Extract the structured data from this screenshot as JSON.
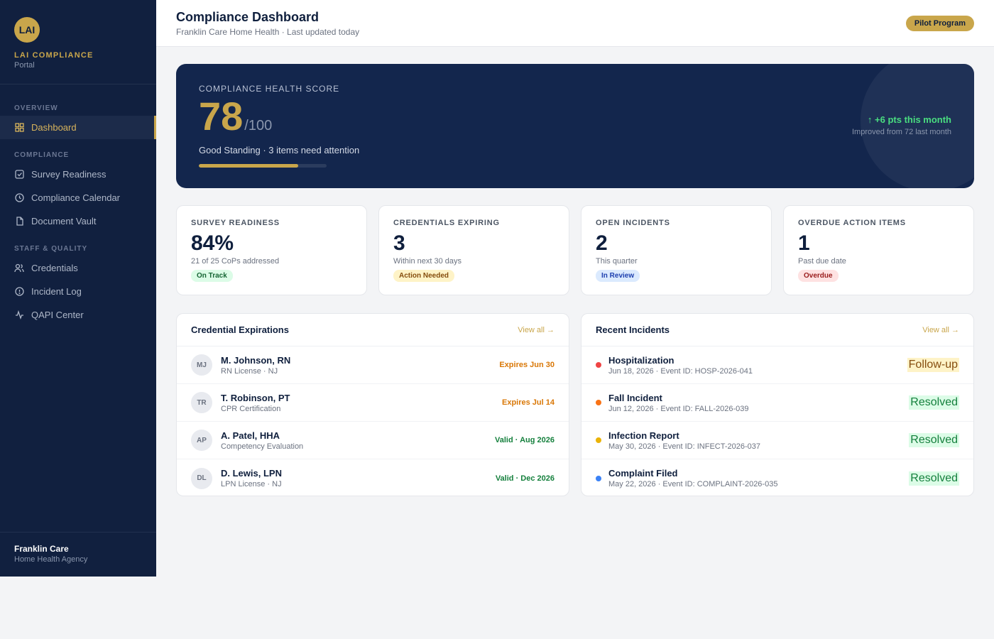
{
  "brand": {
    "logo": "LAI",
    "name": "LAI COMPLIANCE",
    "sub": "Portal"
  },
  "nav": {
    "overview_label": "OVERVIEW",
    "dashboard": "Dashboard",
    "compliance_label": "COMPLIANCE",
    "survey_readiness": "Survey Readiness",
    "compliance_calendar": "Compliance Calendar",
    "document_vault": "Document Vault",
    "staff_label": "STAFF & QUALITY",
    "credentials": "Credentials",
    "incident_log": "Incident Log",
    "qapi_center": "QAPI Center"
  },
  "footer": {
    "org_name": "Franklin Care",
    "org_type": "Home Health Agency"
  },
  "header": {
    "title": "Compliance Dashboard",
    "subtitle": "Franklin Care Home Health · Last updated today",
    "badge": "Pilot Program"
  },
  "hero": {
    "label": "COMPLIANCE HEALTH SCORE",
    "score": "78",
    "max": "/100",
    "status": "Good Standing · 3 items need attention",
    "progress_percent": 78,
    "trend": "↑ +6 pts this month",
    "trend_sub": "Improved from 72 last month"
  },
  "stats": [
    {
      "label": "SURVEY READINESS",
      "value": "84%",
      "sub": "21 of 25 CoPs addressed",
      "pill": "On Track"
    },
    {
      "label": "CREDENTIALS EXPIRING",
      "value": "3",
      "sub": "Within next 30 days",
      "pill": "Action Needed"
    },
    {
      "label": "OPEN INCIDENTS",
      "value": "2",
      "sub": "This quarter",
      "pill": "In Review"
    },
    {
      "label": "OVERDUE ACTION ITEMS",
      "value": "1",
      "sub": "Past due date",
      "pill": "Overdue"
    }
  ],
  "credentials": {
    "title": "Credential Expirations",
    "view_all": "View all →",
    "rows": [
      {
        "initials": "MJ",
        "name": "M. Johnson, RN",
        "detail": "RN License · NJ",
        "status": "Expires Jun 30"
      },
      {
        "initials": "TR",
        "name": "T. Robinson, PT",
        "detail": "CPR Certification",
        "status": "Expires Jul 14"
      },
      {
        "initials": "AP",
        "name": "A. Patel, HHA",
        "detail": "Competency Evaluation",
        "status": "Valid · Aug 2026"
      },
      {
        "initials": "DL",
        "name": "D. Lewis, LPN",
        "detail": "LPN License · NJ",
        "status": "Valid · Dec 2026"
      }
    ]
  },
  "incidents": {
    "title": "Recent Incidents",
    "view_all": "View all →",
    "rows": [
      {
        "type": "Hospitalization",
        "detail": "Jun 18, 2026 · Event ID: HOSP-2026-041",
        "status": "Follow-up",
        "dot_color": "#ef4444"
      },
      {
        "type": "Fall Incident",
        "detail": "Jun 12, 2026 · Event ID: FALL-2026-039",
        "status": "Resolved",
        "dot_color": "#f97316"
      },
      {
        "type": "Infection Report",
        "detail": "May 30, 2026 · Event ID: INFECT-2026-037",
        "status": "Resolved",
        "dot_color": "#eab308"
      },
      {
        "type": "Complaint Filed",
        "detail": "May 22, 2026 · Event ID: COMPLAINT-2026-035",
        "status": "Resolved",
        "dot_color": "#3b82f6"
      }
    ]
  },
  "colors": {
    "navy": "#11203f",
    "gold": "#c9a64b",
    "hero": "#13264d",
    "trend_green": "#4ade80"
  }
}
